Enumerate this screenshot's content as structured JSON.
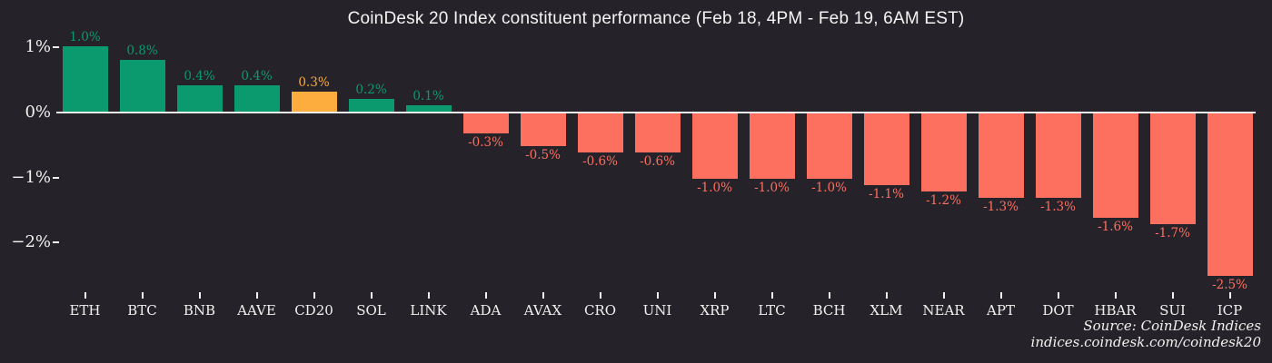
{
  "title": "CoinDesk 20 Index constituent performance (Feb 18, 4PM - Feb 19, 6AM EST)",
  "source": {
    "line1": "Source: CoinDesk Indices",
    "line2": "indices.coindesk.com/coindesk20"
  },
  "colors": {
    "background": "#252229",
    "positive": "#0b9a6d",
    "negative": "#fd6f5f",
    "highlight": "#fcad3d",
    "axis_line": "#ededed",
    "text": "#f2f1ef"
  },
  "chart_data": {
    "type": "bar",
    "title": "CoinDesk 20 Index constituent performance (Feb 18, 4PM - Feb 19, 6AM EST)",
    "categories": [
      "ETH",
      "BTC",
      "BNB",
      "AAVE",
      "CD20",
      "SOL",
      "LINK",
      "ADA",
      "AVAX",
      "CRO",
      "UNI",
      "XRP",
      "LTC",
      "BCH",
      "XLM",
      "NEAR",
      "APT",
      "DOT",
      "HBAR",
      "SUI",
      "ICP"
    ],
    "values": [
      1.0,
      0.8,
      0.4,
      0.4,
      0.3,
      0.2,
      0.1,
      -0.3,
      -0.5,
      -0.6,
      -0.6,
      -1.0,
      -1.0,
      -1.0,
      -1.1,
      -1.2,
      -1.3,
      -1.3,
      -1.6,
      -1.7,
      -2.5
    ],
    "value_labels": [
      "1.0%",
      "0.8%",
      "0.4%",
      "0.4%",
      "0.3%",
      "0.2%",
      "0.1%",
      "-0.3%",
      "-0.5%",
      "-0.6%",
      "-0.6%",
      "-1.0%",
      "-1.0%",
      "-1.0%",
      "-1.1%",
      "-1.2%",
      "-1.3%",
      "-1.3%",
      "-1.6%",
      "-1.7%",
      "-2.5%"
    ],
    "highlight_category": "CD20",
    "xlabel": "",
    "ylabel": "",
    "y_ticks": [
      {
        "label": "1%",
        "value": 1
      },
      {
        "label": "0%",
        "value": 0
      },
      {
        "label": "−1%",
        "value": -1
      },
      {
        "label": "−2%",
        "value": -2
      }
    ],
    "ylim": [
      -2.7,
      1.15
    ],
    "grid": false,
    "legend": "none",
    "unit": "%"
  }
}
